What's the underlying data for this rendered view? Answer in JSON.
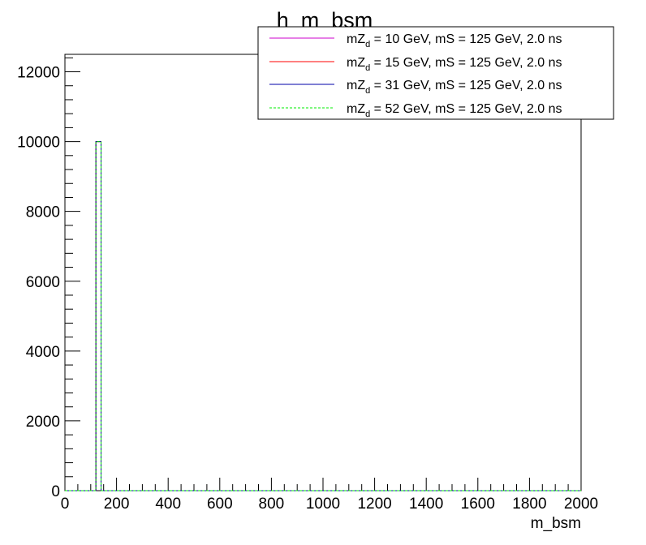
{
  "chart_data": {
    "type": "histogram",
    "title": "h_m_bsm",
    "xlabel": "m_bsm",
    "ylabel": "",
    "xlim": [
      0,
      2000
    ],
    "ylim": [
      0,
      12500
    ],
    "x_ticks": [
      0,
      200,
      400,
      600,
      800,
      1000,
      1200,
      1400,
      1600,
      1800,
      2000
    ],
    "y_ticks": [
      0,
      2000,
      4000,
      6000,
      8000,
      10000,
      12000
    ],
    "bin_width": 20,
    "grid": false,
    "legend_position": "top-right",
    "series": [
      {
        "name": "mZd = 10 GeV, mS = 125 GeV, 2.0 ns",
        "name_base": "mZ",
        "name_sub": "d",
        "name_rest": " = 10 GeV, mS = 125 GeV, 2.0 ns",
        "color": "#cc00cc",
        "dash": "solid",
        "bins": [
          {
            "x": 120,
            "y": 10000
          }
        ]
      },
      {
        "name": "mZd = 15 GeV, mS = 125 GeV, 2.0 ns",
        "name_base": "mZ",
        "name_sub": "d",
        "name_rest": " = 15 GeV, mS = 125 GeV, 2.0 ns",
        "color": "#ff0000",
        "dash": "solid",
        "bins": [
          {
            "x": 120,
            "y": 10000
          }
        ]
      },
      {
        "name": "mZd = 31 GeV, mS = 125 GeV, 2.0 ns",
        "name_base": "mZ",
        "name_sub": "d",
        "name_rest": " = 31 GeV, mS = 125 GeV, 2.0 ns",
        "color": "#0000aa",
        "dash": "solid",
        "bins": [
          {
            "x": 120,
            "y": 10000
          }
        ]
      },
      {
        "name": "mZd = 52 GeV, mS = 125 GeV, 2.0 ns",
        "name_base": "mZ",
        "name_sub": "d",
        "name_rest": " = 52 GeV, mS = 125 GeV, 2.0 ns",
        "color": "#00ee00",
        "dash": "dashed",
        "bins": [
          {
            "x": 120,
            "y": 10000
          }
        ]
      }
    ]
  }
}
